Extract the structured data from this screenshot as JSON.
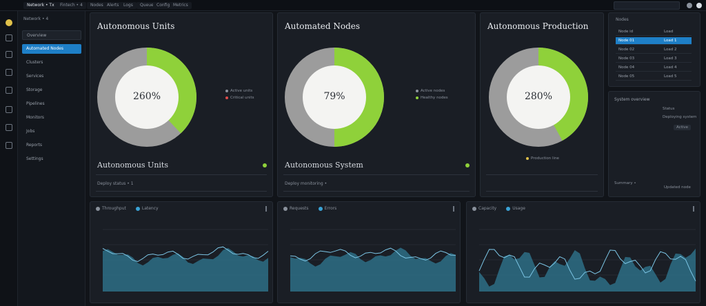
{
  "topbar": {
    "tabs": [
      {
        "label": "Network • Tx",
        "active": true
      },
      {
        "label": "Fintech • 4",
        "active": false
      },
      {
        "label": "Nodes",
        "active": false
      },
      {
        "label": "Alerts",
        "active": false
      },
      {
        "label": "Logs",
        "active": false
      },
      {
        "label": "Queues",
        "active": false
      },
      {
        "label": "Config",
        "active": false
      },
      {
        "label": "Metrics",
        "active": false
      }
    ],
    "search_placeholder": ""
  },
  "sidebar": {
    "header": "Network • 4",
    "items": [
      {
        "label": "Overview",
        "state": "boxed"
      },
      {
        "label": "Automated Nodes",
        "state": "active"
      },
      {
        "label": "Clusters",
        "state": ""
      },
      {
        "label": "Services",
        "state": ""
      },
      {
        "label": "Storage",
        "state": ""
      },
      {
        "label": "Pipelines",
        "state": ""
      },
      {
        "label": "Monitors",
        "state": ""
      },
      {
        "label": "Jobs",
        "state": ""
      },
      {
        "label": "Reports",
        "state": ""
      },
      {
        "label": "Settings",
        "state": ""
      }
    ]
  },
  "donut_panels": [
    {
      "title": "Autonomous Units",
      "value_label": "260%",
      "fraction": 0.38,
      "legend": [
        {
          "label": "Active units",
          "color": "#8a919c"
        },
        {
          "label": "Critical units",
          "color": "#e04b4b"
        }
      ],
      "bottom_label": "Autonomous Units",
      "bottom_sub": "Deploy status • 1",
      "dot_color": "#8fd13a"
    },
    {
      "title": "Automated Nodes",
      "value_label": "79%",
      "fraction": 0.5,
      "legend": [
        {
          "label": "Active nodes",
          "color": "#8a919c"
        },
        {
          "label": "Healthy nodes",
          "color": "#8fd13a"
        }
      ],
      "bottom_label": "Autonomous System",
      "bottom_sub": "Deploy monitoring •",
      "dot_color": "#8fd13a"
    },
    {
      "title": "Autonomous Production",
      "value_label": "280%",
      "fraction": 0.42,
      "legend": [
        {
          "label": "Production line",
          "color": "#e0c14a"
        }
      ],
      "bottom_label": "",
      "bottom_sub": "",
      "dot_color": ""
    }
  ],
  "right_table": {
    "header": "Nodes",
    "rows": [
      {
        "c1": "Node id",
        "c2": "Load",
        "active": false
      },
      {
        "c1": "Node 01",
        "c2": "Load 1",
        "active": true
      },
      {
        "c1": "Node 02",
        "c2": "Load 2",
        "active": false
      },
      {
        "c1": "Node 03",
        "c2": "Load 3",
        "active": false
      },
      {
        "c1": "Node 04",
        "c2": "Load 4",
        "active": false
      },
      {
        "c1": "Node 05",
        "c2": "Load 5",
        "active": false
      }
    ]
  },
  "right_info": {
    "title": "System overview",
    "lines": [
      "Status",
      "Deploying system",
      "Active"
    ],
    "footer_left": "Summary •",
    "footer_right": "Updated node"
  },
  "charts": [
    {
      "head1": "Throughput",
      "head2": "Latency",
      "accent": "#3aa3d6"
    },
    {
      "head1": "Requests",
      "head2": "Errors",
      "accent": "#3aa3d6"
    },
    {
      "head1": "Capacity",
      "head2": "Usage",
      "accent": "#3aa3d6"
    }
  ],
  "colors": {
    "green": "#8fd13a",
    "gray": "#9c9c9c",
    "blue": "#1e7fc7",
    "teal_fill": "#2e6e86"
  }
}
